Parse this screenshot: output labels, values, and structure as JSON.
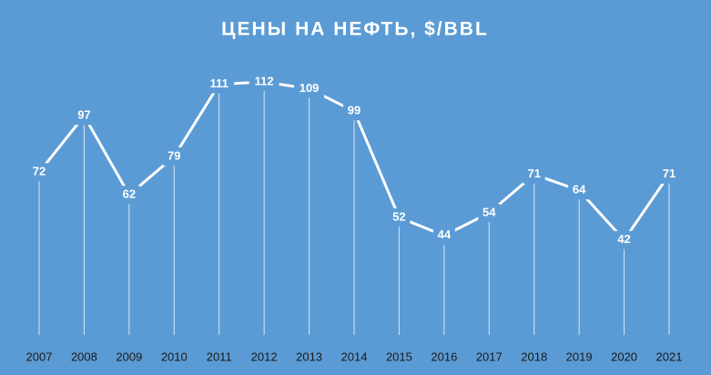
{
  "chart_data": {
    "type": "line",
    "title": "ЦЕНЫ НА НЕФТЬ, $/BBL",
    "categories": [
      "2007",
      "2008",
      "2009",
      "2010",
      "2011",
      "2012",
      "2013",
      "2014",
      "2015",
      "2016",
      "2017",
      "2018",
      "2019",
      "2020",
      "2021"
    ],
    "values": [
      72,
      97,
      62,
      79,
      111,
      112,
      109,
      99,
      52,
      44,
      54,
      71,
      64,
      42,
      71
    ],
    "color": "#ffffff"
  }
}
